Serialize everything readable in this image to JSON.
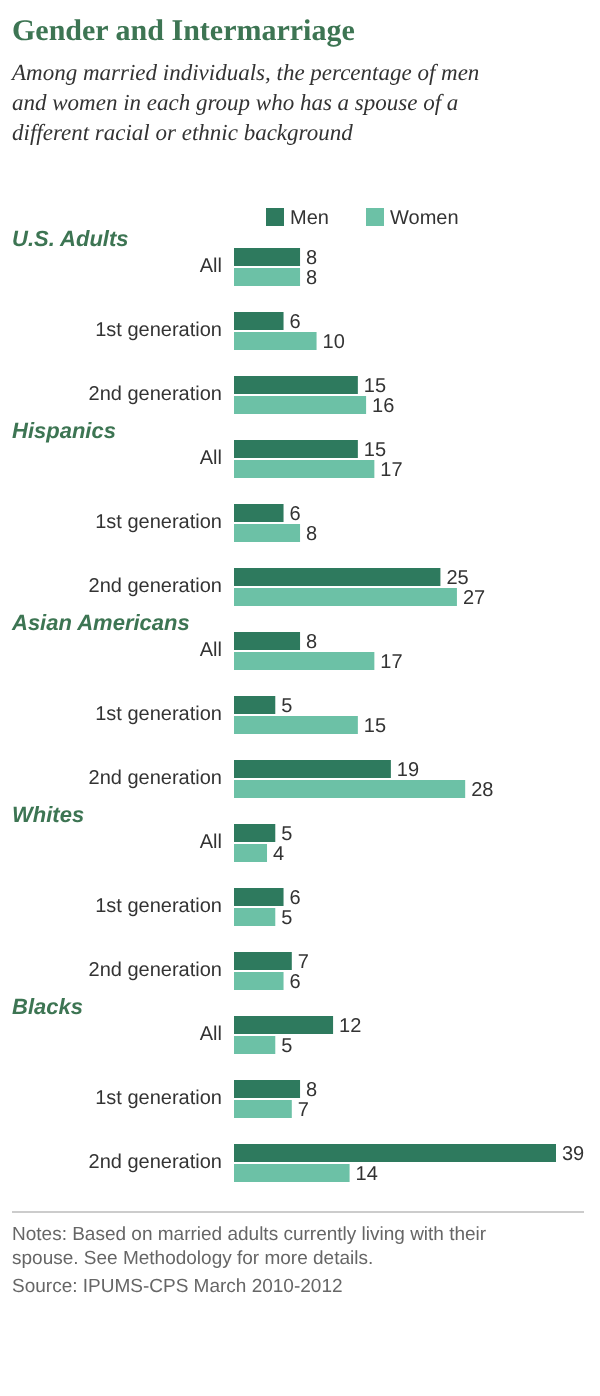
{
  "chart_data": {
    "type": "bar",
    "orientation": "horizontal",
    "title": "Gender and Intermarriage",
    "subtitle": "Among married individuals, the percentage of men and women in each group who has a spouse of a different racial or ethnic background",
    "categories": [
      "All",
      "1st generation",
      "2nd generation",
      "All",
      "1st generation",
      "2nd generation",
      "All",
      "1st generation",
      "2nd generation",
      "All",
      "1st generation",
      "2nd generation",
      "All",
      "1st generation",
      "2nd generation"
    ],
    "series": [
      {
        "name": "Men",
        "color": "#2e7a5e",
        "values": [
          8,
          6,
          15,
          15,
          6,
          25,
          8,
          5,
          19,
          5,
          6,
          7,
          12,
          8,
          39
        ]
      },
      {
        "name": "Women",
        "color": "#6cc1a6",
        "values": [
          8,
          10,
          16,
          17,
          8,
          27,
          17,
          15,
          28,
          4,
          5,
          6,
          5,
          7,
          14
        ]
      }
    ],
    "data_labels": true,
    "legend": "top",
    "grid": false,
    "annotations": [
      "U.S. Adults",
      "Hispanics",
      "Asian Americans",
      "Whites",
      "Blacks",
      "Notes: Based on married adults currently living with their spouse. See Methodology for more details.",
      "Source: IPUMS-CPS  March 2010-2012"
    ]
  }
}
